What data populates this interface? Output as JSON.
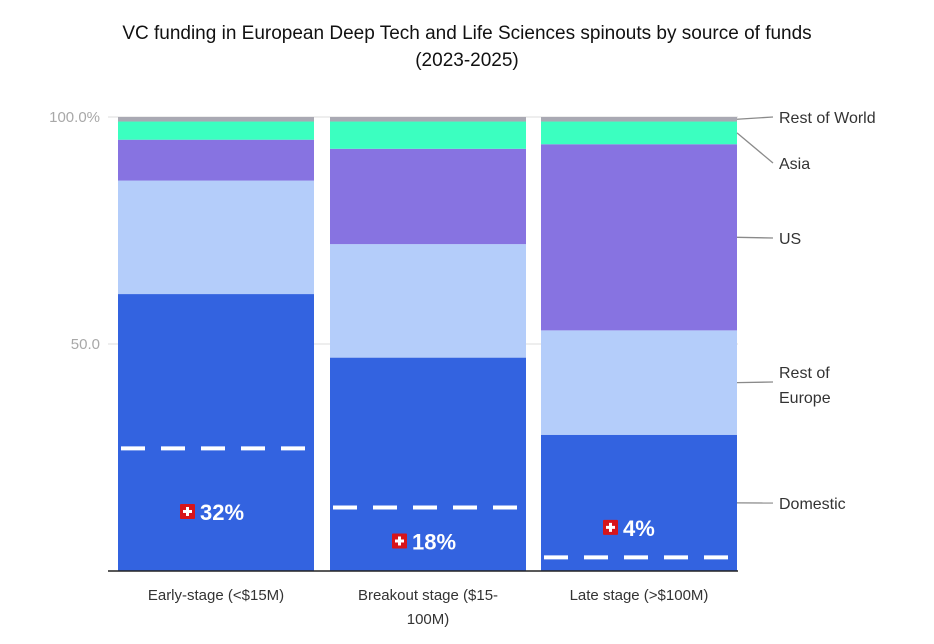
{
  "chart_data": {
    "type": "bar",
    "stacked": true,
    "normalized": true,
    "title": "VC funding in European Deep Tech and Life Sciences spinouts by source of funds",
    "subtitle": "(2023-2025)",
    "xlabel": "",
    "ylabel": "",
    "ylim": [
      0,
      100
    ],
    "yticks": [
      {
        "value": 100,
        "label": "100.0%"
      },
      {
        "value": 50,
        "label": "50.0"
      }
    ],
    "grid": true,
    "legend_position": "right (direct labels)",
    "categories": [
      {
        "line1": "Early-stage (<$15M)",
        "line2": ""
      },
      {
        "line1": "Breakout stage ($15-",
        "line2": "100M)"
      },
      {
        "line1": "Late stage (>$100M)",
        "line2": ""
      }
    ],
    "series": [
      {
        "name": "Domestic",
        "label_line1": "Domestic",
        "label_line2": "",
        "color": "#3363e0",
        "values": [
          61,
          47,
          30
        ]
      },
      {
        "name": "Rest of Europe",
        "label_line1": "Rest of",
        "label_line2": "Europe",
        "color": "#b4cdfa",
        "values": [
          25,
          25,
          23
        ]
      },
      {
        "name": "US",
        "label_line1": "US",
        "label_line2": "",
        "color": "#8773e1",
        "values": [
          9,
          21,
          41
        ]
      },
      {
        "name": "Asia",
        "label_line1": "Asia",
        "label_line2": "",
        "color": "#3bffc0",
        "values": [
          4,
          6,
          5
        ]
      },
      {
        "name": "Rest of World",
        "label_line1": "Rest of World",
        "label_line2": "",
        "color": "#a9a9b3",
        "values": [
          1,
          1,
          1
        ]
      }
    ],
    "annotations": [
      {
        "category": 0,
        "text": "32%",
        "icon": "swiss-flag-icon",
        "dashed_line_value": 27,
        "label_value": 13
      },
      {
        "category": 1,
        "text": "18%",
        "icon": "swiss-flag-icon",
        "dashed_line_value": 14,
        "label_value": 6.5
      },
      {
        "category": 2,
        "text": "4%",
        "icon": "swiss-flag-icon",
        "dashed_line_value": 3,
        "label_value": 9.5
      }
    ]
  }
}
